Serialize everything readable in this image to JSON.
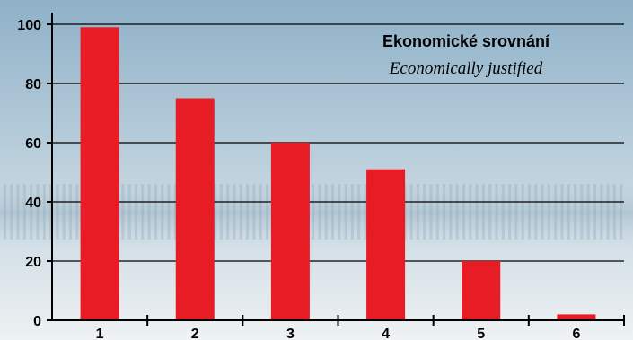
{
  "chart_data": {
    "type": "bar",
    "title": "Ekonomické srovnání",
    "subtitle": "Economically justified",
    "categories": [
      "1",
      "2",
      "3",
      "4",
      "5",
      "6"
    ],
    "values": [
      99,
      75,
      60,
      51,
      20,
      2
    ],
    "ylim": [
      0,
      100
    ],
    "yticks": [
      0,
      20,
      40,
      60,
      80,
      100
    ],
    "grid": true,
    "colors": {
      "bar": "#e81c24",
      "grid": "#000000",
      "background_top": "#8fb1c8",
      "background_bottom": "#eef2f3"
    }
  }
}
